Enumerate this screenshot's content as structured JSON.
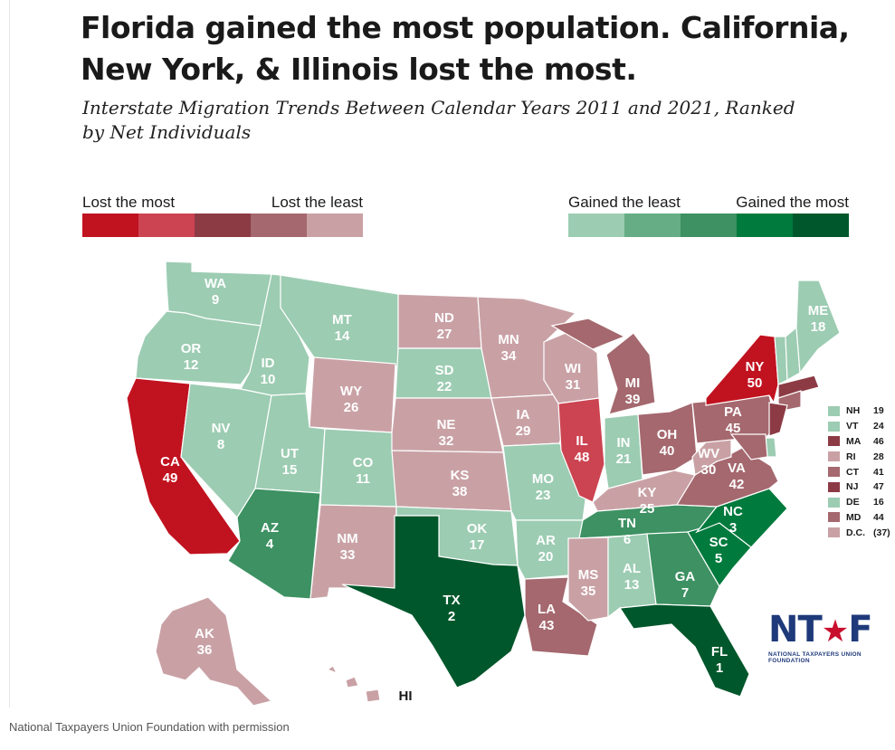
{
  "title": "Florida gained the most population. California, New York, & Illinois lost the most.",
  "subtitle": "Interstate Migration Trends Between Calendar Years 2011 and 2021, Ranked by Net Individuals",
  "legend_lost": {
    "left_label": "Lost the most",
    "right_label": "Lost the least",
    "colors": [
      "#c1121f",
      "#cc4451",
      "#8c3b45",
      "#a4686e",
      "#c9a1a5"
    ]
  },
  "legend_gain": {
    "left_label": "Gained the least",
    "right_label": "Gained the most",
    "colors": [
      "#9cccb2",
      "#66ad85",
      "#3d9162",
      "#007a3d",
      "#00572b"
    ]
  },
  "states": [
    {
      "abbr": "WA",
      "rank": "9",
      "color": "#9cccb2"
    },
    {
      "abbr": "OR",
      "rank": "12",
      "color": "#9cccb2"
    },
    {
      "abbr": "CA",
      "rank": "49",
      "color": "#c1121f"
    },
    {
      "abbr": "ID",
      "rank": "10",
      "color": "#9cccb2"
    },
    {
      "abbr": "NV",
      "rank": "8",
      "color": "#9cccb2"
    },
    {
      "abbr": "MT",
      "rank": "14",
      "color": "#9cccb2"
    },
    {
      "abbr": "WY",
      "rank": "26",
      "color": "#c9a1a5"
    },
    {
      "abbr": "UT",
      "rank": "15",
      "color": "#9cccb2"
    },
    {
      "abbr": "CO",
      "rank": "11",
      "color": "#9cccb2"
    },
    {
      "abbr": "AZ",
      "rank": "4",
      "color": "#3d9162"
    },
    {
      "abbr": "NM",
      "rank": "33",
      "color": "#c9a1a5"
    },
    {
      "abbr": "ND",
      "rank": "27",
      "color": "#c9a1a5"
    },
    {
      "abbr": "SD",
      "rank": "22",
      "color": "#9cccb2"
    },
    {
      "abbr": "NE",
      "rank": "32",
      "color": "#c9a1a5"
    },
    {
      "abbr": "KS",
      "rank": "38",
      "color": "#c9a1a5"
    },
    {
      "abbr": "OK",
      "rank": "17",
      "color": "#9cccb2"
    },
    {
      "abbr": "TX",
      "rank": "2",
      "color": "#00572b"
    },
    {
      "abbr": "MN",
      "rank": "34",
      "color": "#c9a1a5"
    },
    {
      "abbr": "IA",
      "rank": "29",
      "color": "#c9a1a5"
    },
    {
      "abbr": "MO",
      "rank": "23",
      "color": "#9cccb2"
    },
    {
      "abbr": "AR",
      "rank": "20",
      "color": "#9cccb2"
    },
    {
      "abbr": "LA",
      "rank": "43",
      "color": "#a4686e"
    },
    {
      "abbr": "WI",
      "rank": "31",
      "color": "#c9a1a5"
    },
    {
      "abbr": "IL",
      "rank": "48",
      "color": "#cc4451"
    },
    {
      "abbr": "MI",
      "rank": "39",
      "color": "#a4686e"
    },
    {
      "abbr": "IN",
      "rank": "21",
      "color": "#9cccb2"
    },
    {
      "abbr": "OH",
      "rank": "40",
      "color": "#a4686e"
    },
    {
      "abbr": "KY",
      "rank": "25",
      "color": "#c9a1a5"
    },
    {
      "abbr": "TN",
      "rank": "6",
      "color": "#3d9162"
    },
    {
      "abbr": "MS",
      "rank": "35",
      "color": "#c9a1a5"
    },
    {
      "abbr": "AL",
      "rank": "13",
      "color": "#9cccb2"
    },
    {
      "abbr": "GA",
      "rank": "7",
      "color": "#3d9162"
    },
    {
      "abbr": "FL",
      "rank": "1",
      "color": "#00572b"
    },
    {
      "abbr": "SC",
      "rank": "5",
      "color": "#007a3d"
    },
    {
      "abbr": "NC",
      "rank": "3",
      "color": "#007a3d"
    },
    {
      "abbr": "VA",
      "rank": "42",
      "color": "#a4686e"
    },
    {
      "abbr": "WV",
      "rank": "30",
      "color": "#c9a1a5"
    },
    {
      "abbr": "PA",
      "rank": "45",
      "color": "#a4686e"
    },
    {
      "abbr": "NY",
      "rank": "50",
      "color": "#c1121f"
    },
    {
      "abbr": "ME",
      "rank": "18",
      "color": "#9cccb2"
    },
    {
      "abbr": "AK",
      "rank": "36",
      "color": "#c9a1a5"
    },
    {
      "abbr": "HI",
      "rank": "",
      "color": "#c9a1a5"
    }
  ],
  "northeast_key": [
    {
      "abbr": "NH",
      "rank": "19",
      "color": "#9cccb2"
    },
    {
      "abbr": "VT",
      "rank": "24",
      "color": "#9cccb2"
    },
    {
      "abbr": "MA",
      "rank": "46",
      "color": "#8c3b45"
    },
    {
      "abbr": "RI",
      "rank": "28",
      "color": "#c9a1a5"
    },
    {
      "abbr": "CT",
      "rank": "41",
      "color": "#a4686e"
    },
    {
      "abbr": "NJ",
      "rank": "47",
      "color": "#8c3b45"
    },
    {
      "abbr": "DE",
      "rank": "16",
      "color": "#9cccb2"
    },
    {
      "abbr": "MD",
      "rank": "44",
      "color": "#a4686e"
    },
    {
      "abbr": "D.C.",
      "rank": "(37)",
      "color": "#c9a1a5"
    }
  ],
  "logo": {
    "mark_left": "NT",
    "mark_star": "★",
    "mark_right": "F",
    "text": "NATIONAL TAXPAYERS UNION FOUNDATION"
  },
  "caption": "National Taxpayers Union Foundation with permission"
}
